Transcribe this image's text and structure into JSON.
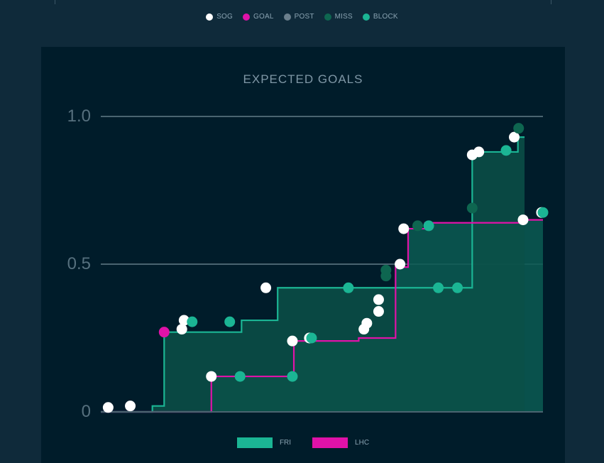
{
  "top_legend": [
    {
      "label": "SOG",
      "color": "#ffffff"
    },
    {
      "label": "GOAL",
      "color": "#e012a8"
    },
    {
      "label": "POST",
      "color": "#6b7f8c"
    },
    {
      "label": "MISS",
      "color": "#0e6650"
    },
    {
      "label": "BLOCK",
      "color": "#1bb594"
    }
  ],
  "chart_data": {
    "type": "step",
    "title": "EXPECTED GOALS",
    "ylim": [
      0,
      1.0
    ],
    "yticks": [
      "0",
      "0.5",
      "1.0"
    ],
    "xlim": [
      0,
      60
    ],
    "grid": true,
    "legend_position": "bottom",
    "series": [
      {
        "name": "FRI",
        "color": "#1bb594",
        "fill": "#0a5048",
        "end_x": 57.5,
        "steps": [
          [
            0,
            0
          ],
          [
            7,
            0.02
          ],
          [
            8.6,
            0.27
          ],
          [
            19.1,
            0.31
          ],
          [
            24,
            0.42
          ],
          [
            50.4,
            0.88
          ],
          [
            56.6,
            0.93
          ]
        ],
        "shots": [
          {
            "x": 1,
            "y": 0.015,
            "type": "SOG"
          },
          {
            "x": 4,
            "y": 0.02,
            "type": "SOG"
          },
          {
            "x": 8.6,
            "y": 0.27,
            "type": "GOAL"
          },
          {
            "x": 11,
            "y": 0.28,
            "type": "SOG"
          },
          {
            "x": 11.3,
            "y": 0.31,
            "type": "SOG"
          },
          {
            "x": 12.4,
            "y": 0.305,
            "type": "BLOCK"
          },
          {
            "x": 17.5,
            "y": 0.305,
            "type": "BLOCK"
          },
          {
            "x": 22.4,
            "y": 0.42,
            "type": "SOG"
          },
          {
            "x": 33.6,
            "y": 0.42,
            "type": "BLOCK"
          },
          {
            "x": 45.8,
            "y": 0.42,
            "type": "BLOCK"
          },
          {
            "x": 48.4,
            "y": 0.42,
            "type": "BLOCK"
          },
          {
            "x": 50.4,
            "y": 0.69,
            "type": "MISS"
          },
          {
            "x": 50.4,
            "y": 0.87,
            "type": "SOG"
          },
          {
            "x": 51.3,
            "y": 0.88,
            "type": "SOG"
          },
          {
            "x": 55,
            "y": 0.885,
            "type": "BLOCK"
          },
          {
            "x": 56.1,
            "y": 0.93,
            "type": "SOG"
          },
          {
            "x": 56.7,
            "y": 0.96,
            "type": "MISS"
          }
        ]
      },
      {
        "name": "LHC",
        "color": "#e012a8",
        "fill": "#0b5b52",
        "end_x": 60,
        "steps": [
          [
            0,
            0
          ],
          [
            15,
            0.013
          ],
          [
            15,
            0.12
          ],
          [
            26.2,
            0.12
          ],
          [
            26.2,
            0.24
          ],
          [
            35,
            0.25
          ],
          [
            40,
            0.4
          ],
          [
            40,
            0.49
          ],
          [
            41.7,
            0.5
          ],
          [
            41.7,
            0.62
          ],
          [
            44,
            0.64
          ],
          [
            49.9,
            0.64
          ],
          [
            57.5,
            0.65
          ]
        ],
        "shots": [
          {
            "x": 15,
            "y": 0.12,
            "type": "SOG"
          },
          {
            "x": 18.9,
            "y": 0.12,
            "type": "BLOCK"
          },
          {
            "x": 26,
            "y": 0.12,
            "type": "BLOCK"
          },
          {
            "x": 26,
            "y": 0.24,
            "type": "SOG"
          },
          {
            "x": 28.3,
            "y": 0.25,
            "type": "SOG"
          },
          {
            "x": 28.6,
            "y": 0.25,
            "type": "BLOCK"
          },
          {
            "x": 35.7,
            "y": 0.28,
            "type": "SOG"
          },
          {
            "x": 36.1,
            "y": 0.3,
            "type": "SOG"
          },
          {
            "x": 37.7,
            "y": 0.34,
            "type": "SOG"
          },
          {
            "x": 37.7,
            "y": 0.38,
            "type": "SOG"
          },
          {
            "x": 38.7,
            "y": 0.48,
            "type": "MISS"
          },
          {
            "x": 38.7,
            "y": 0.46,
            "type": "MISS"
          },
          {
            "x": 40.6,
            "y": 0.5,
            "type": "SOG"
          },
          {
            "x": 41.1,
            "y": 0.62,
            "type": "SOG"
          },
          {
            "x": 43,
            "y": 0.63,
            "type": "MISS"
          },
          {
            "x": 44.5,
            "y": 0.63,
            "type": "BLOCK"
          },
          {
            "x": 57.3,
            "y": 0.65,
            "type": "SOG"
          },
          {
            "x": 59.8,
            "y": 0.675,
            "type": "SOG"
          },
          {
            "x": 60,
            "y": 0.675,
            "type": "BLOCK"
          }
        ]
      }
    ]
  }
}
